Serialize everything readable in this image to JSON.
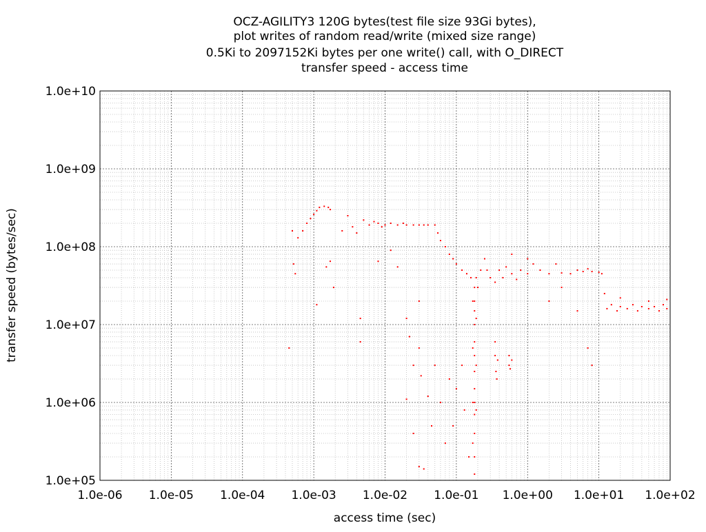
{
  "chart_data": {
    "type": "scatter",
    "title": [
      "OCZ-AGILITY3 120G bytes(test file size 93Gi bytes),",
      "plot writes of random read/write (mixed size range)",
      "0.5Ki to 2097152Ki bytes per one write() call, with O_DIRECT",
      "transfer speed - access time"
    ],
    "xlabel": "access time (sec)",
    "ylabel": "transfer speed (bytes/sec)",
    "xscale": "log",
    "yscale": "log",
    "grid": true,
    "minor_grid": true,
    "color": "#ff0000",
    "xlim": [
      1e-06,
      100
    ],
    "ylim": [
      100000,
      10000000000
    ],
    "xticks": [
      {
        "value": 1e-06,
        "label": "1.0e-06"
      },
      {
        "value": 1e-05,
        "label": "1.0e-05"
      },
      {
        "value": 0.0001,
        "label": "1.0e-04"
      },
      {
        "value": 0.001,
        "label": "1.0e-03"
      },
      {
        "value": 0.01,
        "label": "1.0e-02"
      },
      {
        "value": 0.1,
        "label": "1.0e-01"
      },
      {
        "value": 1,
        "label": "1.0e+00"
      },
      {
        "value": 10,
        "label": "1.0e+01"
      },
      {
        "value": 100,
        "label": "1.0e+02"
      }
    ],
    "yticks": [
      {
        "value": 100000,
        "label": "1.0e+05"
      },
      {
        "value": 1000000,
        "label": "1.0e+06"
      },
      {
        "value": 10000000,
        "label": "1.0e+07"
      },
      {
        "value": 100000000,
        "label": "1.0e+08"
      },
      {
        "value": 1000000000,
        "label": "1.0e+09"
      },
      {
        "value": 10000000000,
        "label": "1.0e+10"
      }
    ],
    "x": [
      0.00045,
      0.0005,
      0.00052,
      0.00055,
      0.0006,
      0.0007,
      0.0008,
      0.0009,
      0.001,
      0.0011,
      0.0012,
      0.0014,
      0.0016,
      0.0017,
      0.0011,
      0.0015,
      0.0017,
      0.0019,
      0.0025,
      0.003,
      0.0035,
      0.004,
      0.0045,
      0.0045,
      0.005,
      0.006,
      0.007,
      0.008,
      0.009,
      0.01,
      0.012,
      0.015,
      0.018,
      0.02,
      0.025,
      0.03,
      0.035,
      0.04,
      0.05,
      0.055,
      0.06,
      0.07,
      0.08,
      0.09,
      0.1,
      0.12,
      0.14,
      0.16,
      0.008,
      0.012,
      0.015,
      0.02,
      0.022,
      0.025,
      0.025,
      0.02,
      0.03,
      0.03,
      0.03,
      0.032,
      0.035,
      0.04,
      0.045,
      0.05,
      0.06,
      0.07,
      0.08,
      0.09,
      0.1,
      0.12,
      0.13,
      0.15,
      0.18,
      0.18,
      0.18,
      0.18,
      0.18,
      0.18,
      0.18,
      0.18,
      0.18,
      0.18,
      0.18,
      0.18,
      0.18,
      0.17,
      0.17,
      0.17,
      0.17,
      0.19,
      0.19,
      0.19,
      0.19,
      0.2,
      0.22,
      0.25,
      0.27,
      0.3,
      0.35,
      0.4,
      0.45,
      0.5,
      0.6,
      0.7,
      0.8,
      1,
      1.2,
      1.5,
      2,
      2.5,
      3,
      4,
      5,
      6,
      7,
      8,
      10,
      11,
      0.6,
      1,
      2,
      3,
      5,
      7,
      8,
      0.35,
      0.35,
      0.36,
      0.37,
      0.38,
      0.55,
      0.55,
      0.57,
      0.6,
      13,
      15,
      18,
      20,
      25,
      30,
      35,
      40,
      50,
      60,
      70,
      80,
      90,
      90,
      12,
      20,
      50
    ],
    "y": [
      5000000,
      160000000,
      60000000,
      45000000,
      130000000,
      160000000,
      200000000,
      230000000,
      260000000,
      290000000,
      320000000,
      330000000,
      320000000,
      300000000,
      18000000,
      55000000,
      65000000,
      30000000,
      160000000,
      250000000,
      180000000,
      150000000,
      6000000,
      12000000,
      220000000,
      190000000,
      210000000,
      200000000,
      180000000,
      190000000,
      200000000,
      190000000,
      200000000,
      190000000,
      190000000,
      190000000,
      190000000,
      190000000,
      190000000,
      150000000,
      120000000,
      100000000,
      80000000,
      70000000,
      60000000,
      50000000,
      45000000,
      40000000,
      65000000,
      90000000,
      55000000,
      12000000,
      7000000,
      3000000,
      400000,
      1100000,
      20000000,
      5000000,
      150000,
      2200000,
      140000,
      1200000,
      500000,
      3000000,
      1000000,
      300000,
      2000000,
      500000,
      1500000,
      3000000,
      800000,
      200000,
      120000,
      200000,
      400000,
      700000,
      1000000,
      1500000,
      2500000,
      4000000,
      6000000,
      10000000,
      15000000,
      20000000,
      30000000,
      300000,
      1000000,
      5000000,
      20000000,
      800000,
      3000000,
      12000000,
      40000000,
      30000000,
      50000000,
      70000000,
      50000000,
      40000000,
      35000000,
      50000000,
      40000000,
      55000000,
      45000000,
      38000000,
      50000000,
      45000000,
      60000000,
      50000000,
      45000000,
      60000000,
      46000000,
      45000000,
      50000000,
      48000000,
      52000000,
      48000000,
      47000000,
      45000000,
      80000000,
      70000000,
      20000000,
      30000000,
      15000000,
      5000000,
      3000000,
      6000000,
      4000000,
      2500000,
      2000000,
      3500000,
      4000000,
      3000000,
      2700000,
      3500000,
      16000000,
      18000000,
      15000000,
      17000000,
      16000000,
      18000000,
      15000000,
      17000000,
      16000000,
      17000000,
      15000000,
      18000000,
      16000000,
      21000000,
      25000000,
      22000000,
      20000000
    ]
  }
}
